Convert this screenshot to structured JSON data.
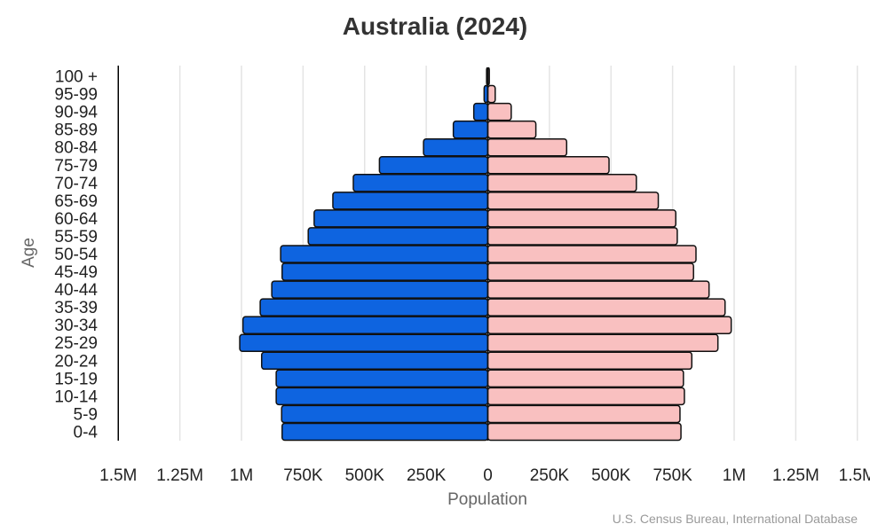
{
  "chart_data": {
    "type": "bar",
    "orientation": "horizontal-pyramid",
    "title": "Australia (2024)",
    "xlabel": "Population",
    "ylabel": "Age",
    "source": "U.S. Census Bureau, International Database",
    "categories": [
      "100 +",
      "95-99",
      "90-94",
      "85-89",
      "80-84",
      "75-79",
      "70-74",
      "65-69",
      "60-64",
      "55-59",
      "50-54",
      "45-49",
      "40-44",
      "35-39",
      "30-34",
      "25-29",
      "20-24",
      "15-19",
      "10-14",
      "5-9",
      "0-4"
    ],
    "series": [
      {
        "side": "left",
        "color": "#0e64e0",
        "values": [
          5000,
          15000,
          57000,
          140000,
          261000,
          440000,
          546000,
          629000,
          705000,
          729000,
          841000,
          835000,
          877000,
          924000,
          994000,
          1007000,
          918000,
          859000,
          859000,
          837000,
          835000
        ]
      },
      {
        "side": "right",
        "color": "#f9c0c0",
        "values": [
          6000,
          30000,
          95000,
          195000,
          320000,
          492000,
          603000,
          692000,
          763000,
          769000,
          845000,
          835000,
          898000,
          963000,
          988000,
          934000,
          828000,
          794000,
          798000,
          780000,
          784000
        ]
      }
    ],
    "xlim": [
      -1500000,
      1500000
    ],
    "xticks": [
      {
        "value": -1500000,
        "label": "1.5M"
      },
      {
        "value": -1250000,
        "label": "1.25M"
      },
      {
        "value": -1000000,
        "label": "1M"
      },
      {
        "value": -750000,
        "label": "750K"
      },
      {
        "value": -500000,
        "label": "500K"
      },
      {
        "value": -250000,
        "label": "250K"
      },
      {
        "value": 0,
        "label": "0"
      },
      {
        "value": 250000,
        "label": "250K"
      },
      {
        "value": 500000,
        "label": "500K"
      },
      {
        "value": 750000,
        "label": "750K"
      },
      {
        "value": 1000000,
        "label": "1M"
      },
      {
        "value": 1250000,
        "label": "1.25M"
      },
      {
        "value": 1500000,
        "label": "1.5M"
      }
    ],
    "grid": true
  }
}
